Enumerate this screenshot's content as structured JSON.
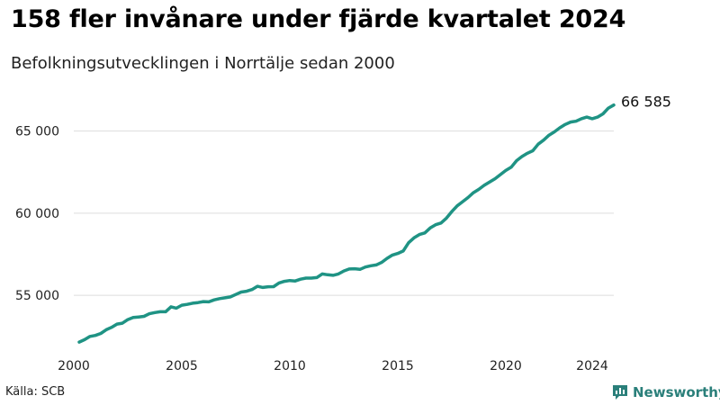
{
  "header": {
    "title": "158 fler invånare under fjärde kvartalet 2024",
    "subtitle": "Befolkningsutvecklingen i Norrtälje sedan 2000"
  },
  "footer": {
    "source": "Källa: SCB",
    "brand": "Newsworthy"
  },
  "colors": {
    "line": "#1f9384",
    "grid": "#dddddd",
    "brand": "#2a7f7a"
  },
  "icons": {
    "brand_logo": "newsworthy-logo-icon"
  },
  "chart_data": {
    "type": "line",
    "title": "158 fler invånare under fjärde kvartalet 2024",
    "subtitle": "Befolkningsutvecklingen i Norrtälje sedan 2000",
    "xlabel": "",
    "ylabel": "",
    "xlim": [
      2000,
      2025
    ],
    "ylim": [
      51500,
      67500
    ],
    "grid": true,
    "x_ticks": [
      2000,
      2005,
      2010,
      2015,
      2020,
      2024
    ],
    "x_tick_labels": [
      "2000",
      "2005",
      "2010",
      "2015",
      "2020",
      "2024"
    ],
    "y_ticks": [
      55000,
      60000,
      65000
    ],
    "y_tick_labels": [
      "55 000",
      "60 000",
      "65 000"
    ],
    "end_label": "66 585",
    "series": [
      {
        "x": [
          2000.25,
          2000.5,
          2000.75,
          2001.0,
          2001.25,
          2001.5,
          2001.75,
          2002.0,
          2002.25,
          2002.5,
          2002.75,
          2003.0,
          2003.25,
          2003.5,
          2003.75,
          2004.0,
          2004.25,
          2004.5,
          2004.75,
          2005.0,
          2005.25,
          2005.5,
          2005.75,
          2006.0,
          2006.25,
          2006.5,
          2006.75,
          2007.0,
          2007.25,
          2007.5,
          2007.75,
          2008.0,
          2008.25,
          2008.5,
          2008.75,
          2009.0,
          2009.25,
          2009.5,
          2009.75,
          2010.0,
          2010.25,
          2010.5,
          2010.75,
          2011.0,
          2011.25,
          2011.5,
          2011.75,
          2012.0,
          2012.25,
          2012.5,
          2012.75,
          2013.0,
          2013.25,
          2013.5,
          2013.75,
          2014.0,
          2014.25,
          2014.5,
          2014.75,
          2015.0,
          2015.25,
          2015.5,
          2015.75,
          2016.0,
          2016.25,
          2016.5,
          2016.75,
          2017.0,
          2017.25,
          2017.5,
          2017.75,
          2018.0,
          2018.25,
          2018.5,
          2018.75,
          2019.0,
          2019.25,
          2019.5,
          2019.75,
          2020.0,
          2020.25,
          2020.5,
          2020.75,
          2021.0,
          2021.25,
          2021.5,
          2021.75,
          2022.0,
          2022.25,
          2022.5,
          2022.75,
          2023.0,
          2023.25,
          2023.5,
          2023.75,
          2024.0,
          2024.25,
          2024.5,
          2024.75,
          2025.0
        ],
        "values": [
          52150,
          52300,
          52500,
          52560,
          52680,
          52900,
          53050,
          53250,
          53300,
          53520,
          53650,
          53680,
          53720,
          53880,
          53950,
          54000,
          54000,
          54300,
          54220,
          54400,
          54450,
          54520,
          54560,
          54620,
          54600,
          54720,
          54800,
          54850,
          54900,
          55050,
          55200,
          55250,
          55350,
          55550,
          55480,
          55520,
          55530,
          55750,
          55850,
          55900,
          55870,
          55980,
          56050,
          56050,
          56080,
          56300,
          56250,
          56220,
          56300,
          56480,
          56600,
          56620,
          56580,
          56720,
          56800,
          56850,
          57000,
          57250,
          57450,
          57550,
          57700,
          58200,
          58500,
          58700,
          58800,
          59100,
          59300,
          59400,
          59700,
          60100,
          60450,
          60700,
          60950,
          61250,
          61450,
          61700,
          61900,
          62100,
          62350,
          62600,
          62800,
          63200,
          63450,
          63650,
          63800,
          64200,
          64450,
          64750,
          64950,
          65200,
          65400,
          65550,
          65600,
          65750,
          65850,
          65750,
          65850,
          66050,
          66400,
          66585
        ]
      }
    ]
  }
}
